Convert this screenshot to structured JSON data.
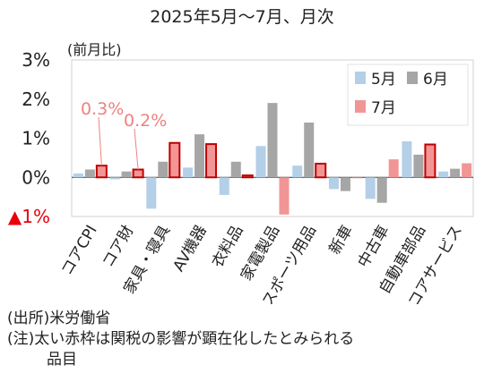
{
  "chart_data": {
    "type": "bar",
    "title": "2025年5月～7月、月次",
    "ylabel": "(前月比)",
    "ylim": [
      -1,
      3
    ],
    "yticks": [
      {
        "value": 3,
        "label": "3%"
      },
      {
        "value": 2,
        "label": "2%"
      },
      {
        "value": 1,
        "label": "1%"
      },
      {
        "value": 0,
        "label": "0%"
      },
      {
        "value": -1,
        "label": "▲1%"
      }
    ],
    "categories": [
      "コアCPI",
      "コア財",
      "家具・寝具",
      "AV機器",
      "衣料品",
      "家電製品",
      "スポーツ用品",
      "新車",
      "中古車",
      "自動車部品",
      "コアサービス"
    ],
    "series": [
      {
        "name": "5月",
        "color": "#b4cfe8",
        "values": [
          0.1,
          -0.05,
          -0.8,
          0.25,
          -0.45,
          0.8,
          0.3,
          -0.3,
          -0.55,
          0.92,
          0.15
        ]
      },
      {
        "name": "6月",
        "color": "#a6a6a6",
        "values": [
          0.2,
          0.15,
          0.4,
          1.1,
          0.4,
          1.9,
          1.4,
          -0.35,
          -0.65,
          0.58,
          0.22
        ]
      },
      {
        "name": "7月",
        "color": "#f29595",
        "values": [
          0.3,
          0.2,
          0.88,
          0.85,
          0.05,
          -0.95,
          0.35,
          0.0,
          0.46,
          0.84,
          0.36
        ]
      }
    ],
    "tariff_highlight_categories": [
      "コアCPI",
      "コア財",
      "家具・寝具",
      "AV機器",
      "衣料品",
      "スポーツ用品",
      "自動車部品"
    ],
    "highlight_border_color": "#c00000",
    "annotations": [
      {
        "text": "0.3%",
        "category": "コアCPI",
        "series": "7月"
      },
      {
        "text": "0.2%",
        "category": "コア財",
        "series": "7月"
      }
    ],
    "legend_position": "top-right",
    "grid": false
  },
  "notes": {
    "source": "(出所)米労働省",
    "note_line1": "(注)太い赤枠は関税の影響が顕在化したとみられる",
    "note_line2": "品目"
  }
}
